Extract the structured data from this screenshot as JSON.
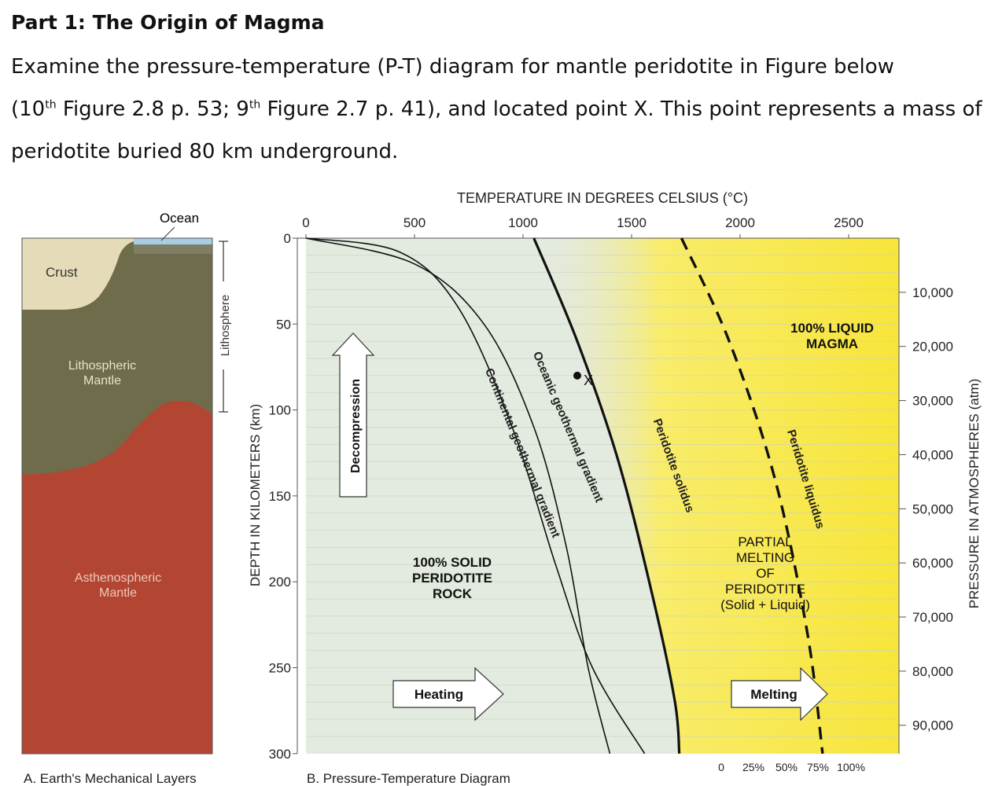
{
  "document": {
    "heading": "Part 1: The Origin of Magma",
    "line1": "Examine the pressure-temperature (P-T) diagram for mantle peridotite in Figure below",
    "line2_open": "(10",
    "line2_sup1": "th",
    "line2_mid": " Figure 2.8 p. 53; 9",
    "line2_sup2": "th",
    "line2_rest": " Figure 2.7 p. 41), and located point X. This point represents a mass of",
    "line3": "peridotite buried 80 km underground."
  },
  "panel_a": {
    "ocean": "Ocean",
    "crust": "Crust",
    "lithosphere": "Lithosphere",
    "lith_mantle_1": "Lithospheric",
    "lith_mantle_2": "Mantle",
    "asth_mantle_1": "Asthenospheric",
    "asth_mantle_2": "Mantle",
    "caption": "A. Earth's Mechanical Layers"
  },
  "panel_b": {
    "top_axis_title": "TEMPERATURE IN DEGREES CELSIUS (°C)",
    "temp_ticks": [
      "0",
      "500",
      "1000",
      "1500",
      "2000",
      "2500"
    ],
    "left_axis_title": "DEPTH IN KILOMETERS (km)",
    "depth_ticks": [
      "0",
      "50",
      "100",
      "150",
      "200",
      "250",
      "300"
    ],
    "right_axis_title": "PRESSURE IN ATMOSPHERES (atm)",
    "pressure_ticks": [
      "10,000",
      "20,000",
      "30,000",
      "40,000",
      "50,000",
      "60,000",
      "70,000",
      "80,000",
      "90,000"
    ],
    "melt_ticks": [
      "0",
      "25%",
      "50%",
      "75%",
      "100%"
    ],
    "decompression": "Decompression",
    "heating": "Heating",
    "melting": "Melting",
    "solid_1": "100% SOLID",
    "solid_2": "PERIDOTITE",
    "solid_3": "ROCK",
    "liquid_1": "100% LIQUID",
    "liquid_2": "MAGMA",
    "partial_1": "PARTIAL",
    "partial_2": "MELTING",
    "partial_3": "OF",
    "partial_4": "PERIDOTITE",
    "partial_5": "(Solid + Liquid)",
    "continental": "Continental geothermal gradient",
    "oceanic": "Oceanic geothermal gradient",
    "solidus": "Peridotite solidus",
    "liquidus": "Peridotite liquidus",
    "point_label": "X",
    "caption": "B. Pressure-Temperature Diagram"
  },
  "colors": {
    "ocean": "#a9cde0",
    "crust": "#e6dbb8",
    "lithospheric_mantle": "#6e6c4a",
    "asthenospheric_mantle": "#b24632",
    "diagram_bg": "#e3eadf",
    "melt_yellow": "#f7e83a"
  },
  "chart_data": {
    "type": "line",
    "xlabel": "TEMPERATURE IN DEGREES CELSIUS (°C)",
    "ylabel": "DEPTH IN KILOMETERS (km)",
    "xlim": [
      0,
      2750
    ],
    "ylim": [
      0,
      300
    ],
    "series": [
      {
        "name": "Continental geothermal gradient",
        "points": [
          [
            0,
            0
          ],
          [
            500,
            15
          ],
          [
            820,
            50
          ],
          [
            1050,
            110
          ],
          [
            1200,
            180
          ],
          [
            1300,
            250
          ],
          [
            1400,
            300
          ]
        ]
      },
      {
        "name": "Oceanic geothermal gradient",
        "points": [
          [
            0,
            0
          ],
          [
            430,
            8
          ],
          [
            700,
            40
          ],
          [
            950,
            110
          ],
          [
            1150,
            190
          ],
          [
            1320,
            250
          ],
          [
            1560,
            300
          ]
        ]
      },
      {
        "name": "Peridotite solidus",
        "points": [
          [
            1050,
            0
          ],
          [
            1250,
            60
          ],
          [
            1440,
            130
          ],
          [
            1600,
            210
          ],
          [
            1700,
            270
          ],
          [
            1720,
            300
          ]
        ]
      },
      {
        "name": "Peridotite liquidus",
        "points": [
          [
            1730,
            0
          ],
          [
            1950,
            60
          ],
          [
            2160,
            140
          ],
          [
            2310,
            230
          ],
          [
            2380,
            300
          ]
        ]
      }
    ],
    "point": {
      "label": "X",
      "temperature": 1250,
      "depth": 80
    }
  }
}
